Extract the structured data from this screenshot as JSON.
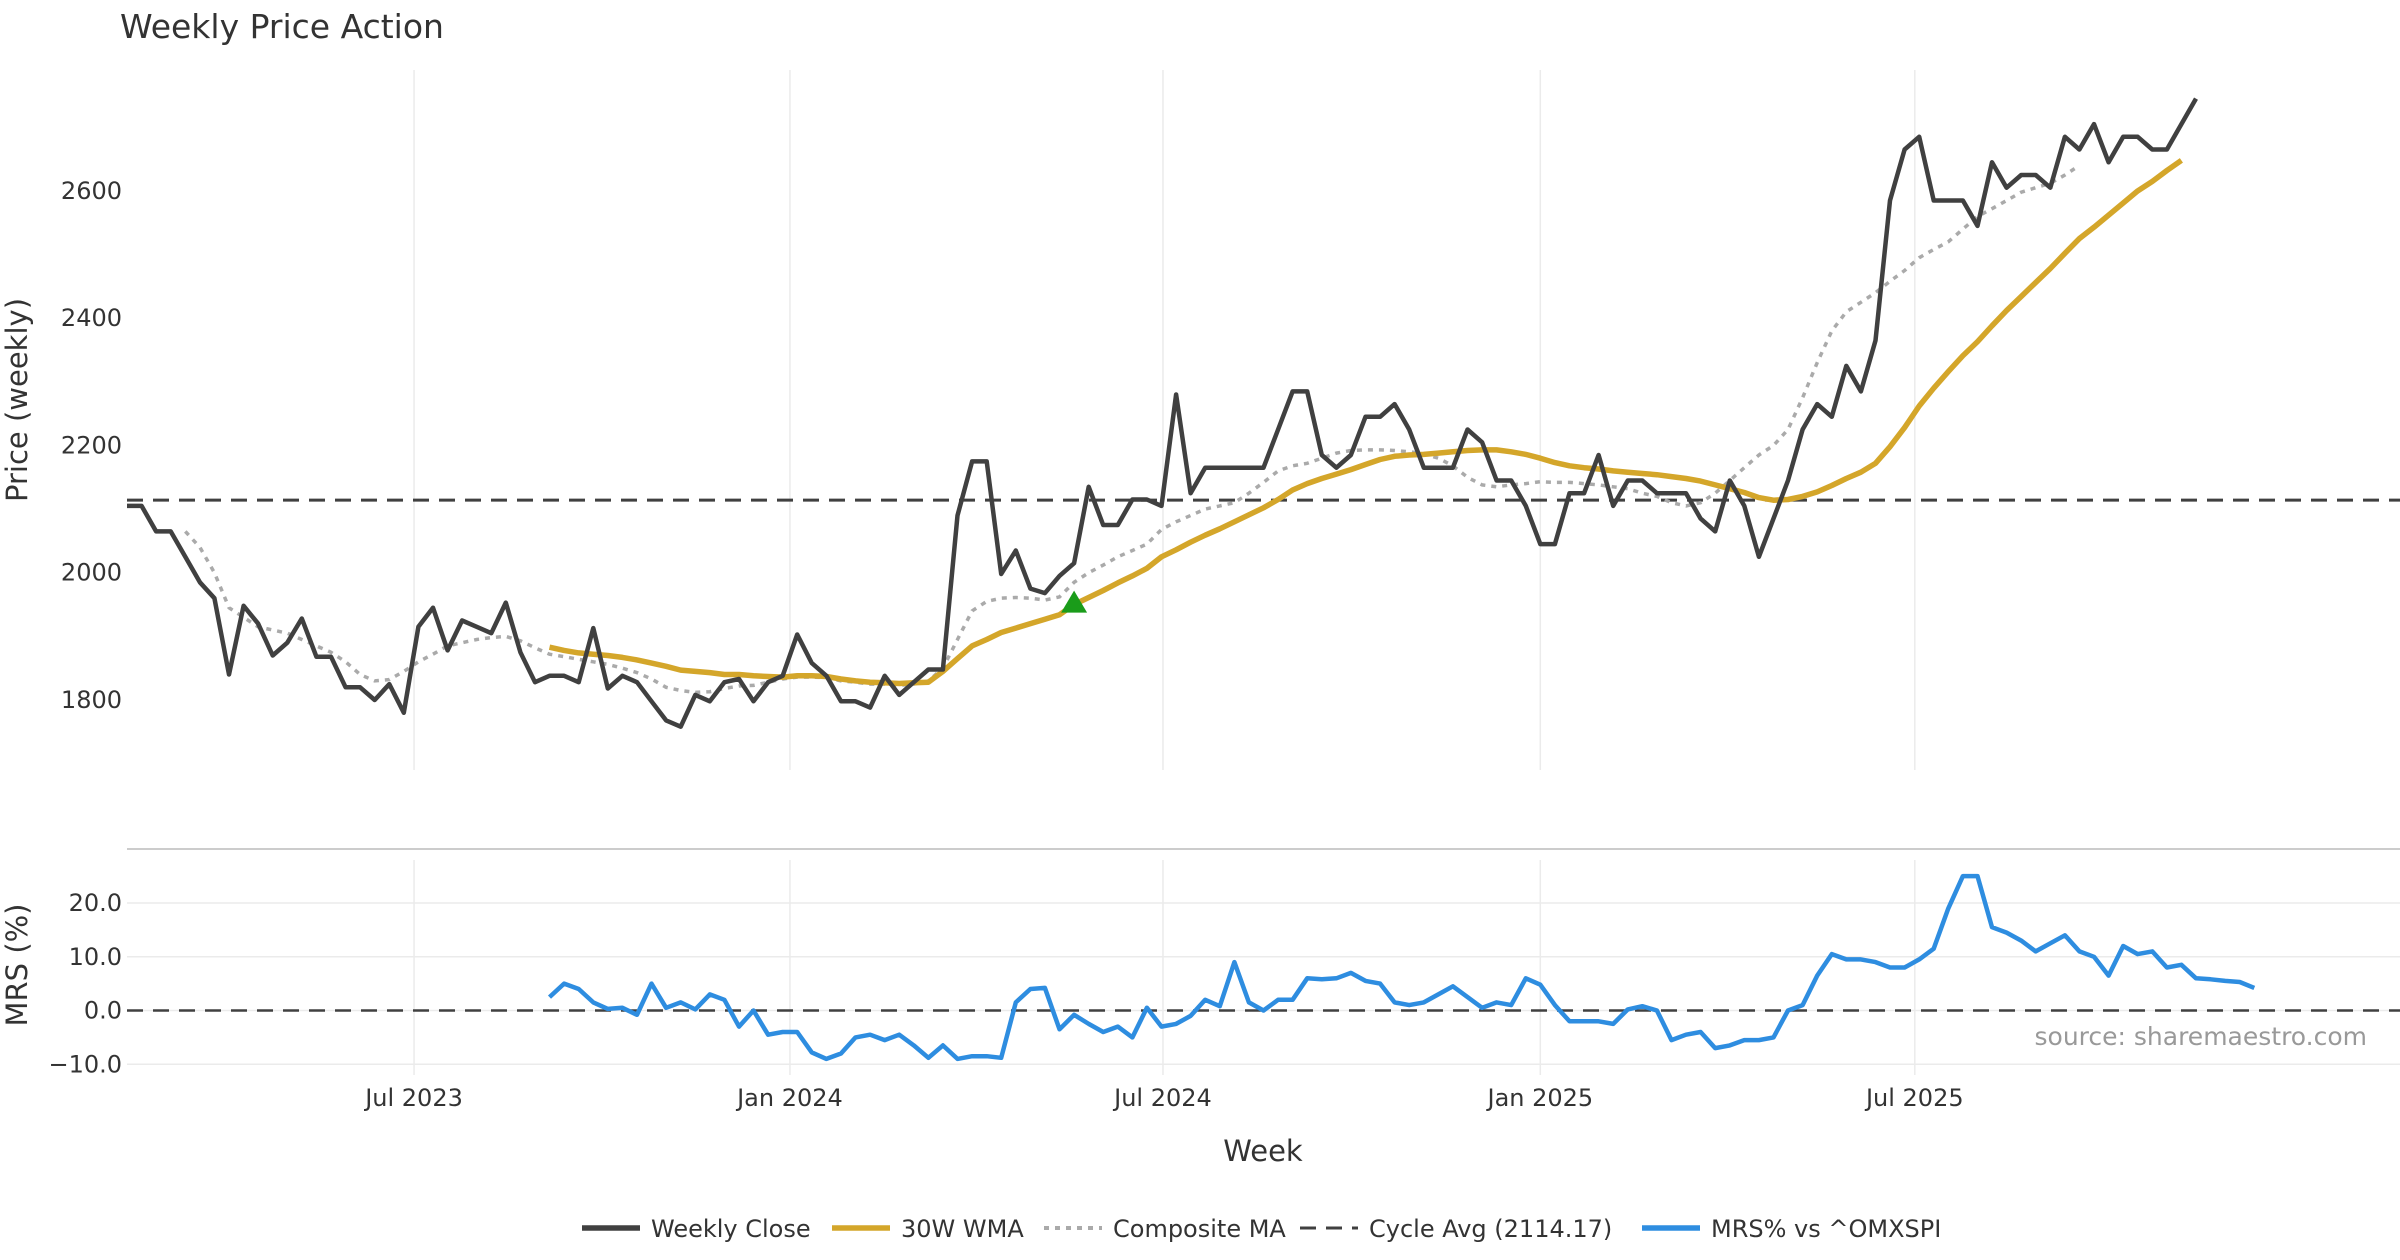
{
  "chart_data": [
    {
      "type": "line",
      "title": "Weekly Price Action",
      "xlabel": "",
      "ylabel": "Price (weekly)",
      "ylim": [
        1690,
        2790
      ],
      "yticks": [
        1800,
        2000,
        2200,
        2400,
        2600
      ],
      "xticks": [
        "Jul 2023",
        "Jan 2024",
        "Jul 2024",
        "Jan 2025",
        "Jul 2025"
      ],
      "x_range_weeks": [
        0,
        156
      ],
      "marker": {
        "name": "Buy signal",
        "week": 65,
        "value": 1953
      },
      "series": [
        {
          "name": "Weekly Close",
          "start_week": 0,
          "values": [
            2105,
            2105,
            2065,
            2065,
            2025,
            1985,
            1960,
            1840,
            1948,
            1920,
            1870,
            1890,
            1928,
            1868,
            1868,
            1820,
            1820,
            1800,
            1825,
            1780,
            1915,
            1945,
            1878,
            1925,
            1915,
            1905,
            1953,
            1875,
            1828,
            1838,
            1838,
            1828,
            1913,
            1818,
            1838,
            1828,
            1798,
            1768,
            1758,
            1808,
            1798,
            1828,
            1833,
            1798,
            1828,
            1838,
            1903,
            1858,
            1838,
            1798,
            1798,
            1788,
            1838,
            1808,
            1828,
            1848,
            1848,
            2090,
            2175,
            2175,
            1998,
            2035,
            1975,
            1968,
            1995,
            2015,
            2135,
            2075,
            2075,
            2115,
            2115,
            2105,
            2280,
            2125,
            2165,
            2165,
            2165,
            2165,
            2165,
            2225,
            2285,
            2285,
            2185,
            2165,
            2185,
            2245,
            2245,
            2265,
            2225,
            2165,
            2165,
            2165,
            2225,
            2205,
            2145,
            2145,
            2105,
            2045,
            2045,
            2125,
            2125,
            2185,
            2105,
            2145,
            2145,
            2125,
            2125,
            2125,
            2085,
            2065,
            2145,
            2105,
            2025,
            2085,
            2145,
            2225,
            2265,
            2245,
            2325,
            2285,
            2365,
            2585,
            2665,
            2685,
            2585,
            2585,
            2585,
            2545,
            2645,
            2605,
            2625,
            2625,
            2605,
            2685,
            2665,
            2705,
            2645,
            2685,
            2685,
            2665,
            2665,
            2705,
            2745
          ]
        },
        {
          "name": "30W WMA",
          "start_week": 29,
          "values": [
            1883,
            1878,
            1874,
            1872,
            1870,
            1867,
            1863,
            1858,
            1853,
            1847,
            1845,
            1843,
            1840,
            1840,
            1838,
            1837,
            1836,
            1838,
            1838,
            1837,
            1833,
            1830,
            1828,
            1827,
            1826,
            1827,
            1828,
            1845,
            1865,
            1885,
            1895,
            1906,
            1913,
            1920,
            1927,
            1934,
            1950,
            1961,
            1972,
            1984,
            1995,
            2007,
            2025,
            2036,
            2048,
            2059,
            2069,
            2080,
            2091,
            2102,
            2115,
            2130,
            2140,
            2148,
            2155,
            2162,
            2170,
            2178,
            2183,
            2185,
            2186,
            2188,
            2190,
            2192,
            2193,
            2193,
            2190,
            2186,
            2180,
            2173,
            2168,
            2165,
            2163,
            2160,
            2158,
            2156,
            2154,
            2151,
            2148,
            2144,
            2138,
            2132,
            2126,
            2118,
            2114,
            2115,
            2120,
            2127,
            2137,
            2148,
            2158,
            2172,
            2198,
            2228,
            2262,
            2290,
            2316,
            2341,
            2363,
            2388,
            2412,
            2434,
            2456,
            2478,
            2502,
            2525,
            2543,
            2562,
            2581,
            2600,
            2615,
            2632,
            2648
          ]
        },
        {
          "name": "Composite MA",
          "start_week": 4,
          "values": [
            2065,
            2040,
            2000,
            1945,
            1930,
            1915,
            1910,
            1905,
            1895,
            1885,
            1875,
            1860,
            1840,
            1830,
            1832,
            1845,
            1860,
            1872,
            1885,
            1890,
            1895,
            1898,
            1900,
            1893,
            1882,
            1872,
            1868,
            1864,
            1860,
            1856,
            1850,
            1843,
            1833,
            1820,
            1815,
            1812,
            1813,
            1818,
            1822,
            1823,
            1828,
            1833,
            1836,
            1836,
            1835,
            1830,
            1828,
            1825,
            1825,
            1823,
            1825,
            1830,
            1850,
            1895,
            1940,
            1955,
            1960,
            1961,
            1960,
            1957,
            1962,
            1985,
            2000,
            2012,
            2025,
            2035,
            2045,
            2068,
            2080,
            2090,
            2100,
            2105,
            2110,
            2125,
            2142,
            2160,
            2168,
            2172,
            2180,
            2188,
            2192,
            2193,
            2193,
            2192,
            2190,
            2187,
            2180,
            2168,
            2150,
            2138,
            2135,
            2138,
            2140,
            2143,
            2142,
            2142,
            2140,
            2138,
            2135,
            2132,
            2125,
            2120,
            2110,
            2105,
            2110,
            2125,
            2145,
            2165,
            2185,
            2200,
            2225,
            2275,
            2330,
            2380,
            2410,
            2425,
            2440,
            2458,
            2475,
            2495,
            2508,
            2520,
            2540,
            2560,
            2572,
            2585,
            2598,
            2605,
            2612,
            2625,
            2640
          ]
        },
        {
          "name": "Cycle Avg (2114.17)",
          "constant": 2114.17
        }
      ]
    },
    {
      "type": "line",
      "title": "",
      "ylabel": "MRS (%)",
      "xlabel": "Week",
      "ylim": [
        -12,
        28
      ],
      "yticks": [
        "−10.0",
        "0.0",
        "10.0",
        "20.0"
      ],
      "ytick_values": [
        -10,
        0,
        10,
        20
      ],
      "xticks": [
        "Jul 2023",
        "Jan 2024",
        "Jul 2024",
        "Jan 2025",
        "Jul 2025"
      ],
      "series": [
        {
          "name": "MRS% vs ^OMXSPI",
          "start_week": 29,
          "values": [
            2.5,
            5.0,
            4.0,
            1.5,
            0.3,
            0.5,
            -0.8,
            5.0,
            0.5,
            1.5,
            0.2,
            3.0,
            2.0,
            -3.0,
            0.0,
            -4.5,
            -4.0,
            -4.0,
            -7.8,
            -9.0,
            -8.0,
            -5.0,
            -4.5,
            -5.5,
            -4.5,
            -6.5,
            -8.8,
            -6.5,
            -9.0,
            -8.5,
            -8.5,
            -8.8,
            1.5,
            4.0,
            4.2,
            -3.5,
            -0.8,
            -2.5,
            -4.0,
            -3.0,
            -5.0,
            0.5,
            -3.0,
            -2.5,
            -1.0,
            2.0,
            0.8,
            9.0,
            1.5,
            0.0,
            2.0,
            2.0,
            6.0,
            5.8,
            6.0,
            7.0,
            5.5,
            5.0,
            1.5,
            1.0,
            1.5,
            3.0,
            4.5,
            2.5,
            0.5,
            1.5,
            1.0,
            6.0,
            4.8,
            1.0,
            -2.0,
            -2.0,
            -2.0,
            -2.5,
            0.2,
            0.8,
            0.0,
            -5.5,
            -4.5,
            -4.0,
            -7.0,
            -6.5,
            -5.5,
            -5.5,
            -5.0,
            0.0,
            1.0,
            6.5,
            10.5,
            9.5,
            9.5,
            9.0,
            8.0,
            8.0,
            9.5,
            11.5,
            19.0,
            25.0,
            25.0,
            15.5,
            14.5,
            13.0,
            11.0,
            12.5,
            14.0,
            11.0,
            10.0,
            6.5,
            12.0,
            10.5,
            11.0,
            8.0,
            8.5,
            6.0,
            5.8,
            5.5,
            5.3,
            4.2
          ]
        },
        {
          "name": "MRS zero line",
          "constant": 0
        }
      ]
    }
  ],
  "legend": {
    "items": [
      {
        "label": "Weekly Close",
        "color": "#404040",
        "style": "solid"
      },
      {
        "label": "30W WMA",
        "color": "#d4a62a",
        "style": "solid"
      },
      {
        "label": "Composite MA",
        "color": "#aaaaaa",
        "style": "dotted"
      },
      {
        "label": "Cycle Avg (2114.17)",
        "color": "#404040",
        "style": "dashed"
      },
      {
        "label": "MRS% vs ^OMXSPI",
        "color": "#2e8de0",
        "style": "solid"
      }
    ]
  },
  "source_note": "source: sharemaestro.com",
  "colors": {
    "close": "#404040",
    "wma": "#d4a62a",
    "composite": "#aaaaaa",
    "cycle": "#404040",
    "mrs": "#2e8de0",
    "marker": "#1a9c1a"
  }
}
